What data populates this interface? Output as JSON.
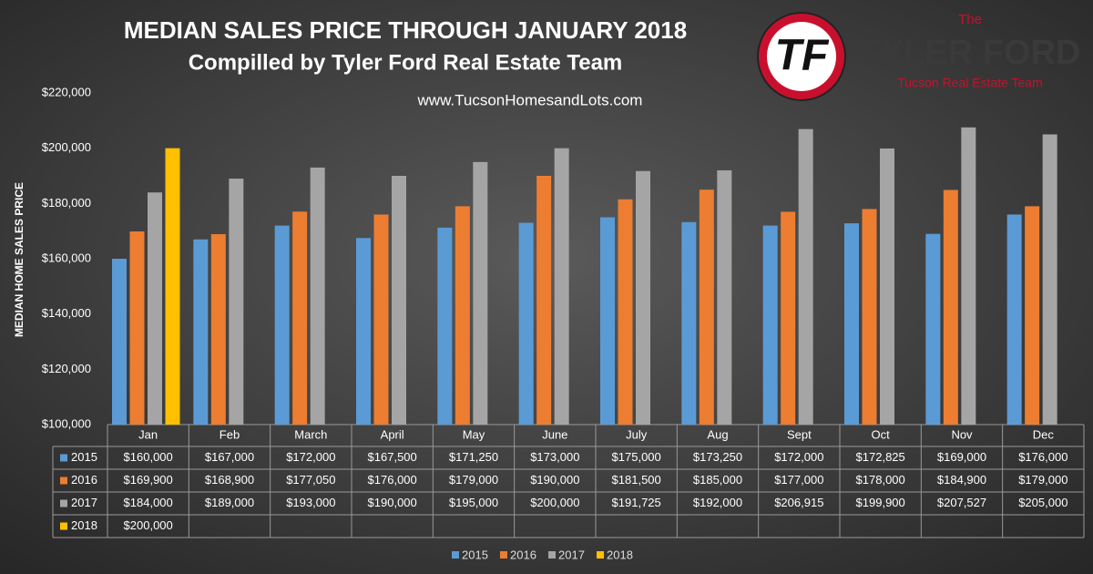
{
  "chart_data": {
    "type": "bar",
    "title": "MEDIAN SALES PRICE THROUGH JANUARY 2018",
    "subtitle": "Compilled by Tyler Ford Real Estate Team",
    "annotation": "www.TucsonHomesandLots.com",
    "ylabel": "MEDIAN HOME SALES PRICE",
    "categories": [
      "Jan",
      "Feb",
      "March",
      "April",
      "May",
      "June",
      "July",
      "Aug",
      "Sept",
      "Oct",
      "Nov",
      "Dec"
    ],
    "series": [
      {
        "name": "2015",
        "color": "#5b9bd5",
        "values": [
          160000,
          167000,
          172000,
          167500,
          171250,
          173000,
          175000,
          173250,
          172000,
          172825,
          169000,
          176000
        ],
        "value_labels": [
          "$160,000",
          "$167,000",
          "$172,000",
          "$167,500",
          "$171,250",
          "$173,000",
          "$175,000",
          "$173,250",
          "$172,000",
          "$172,825",
          "$169,000",
          "$176,000"
        ]
      },
      {
        "name": "2016",
        "color": "#ed7d31",
        "values": [
          169900,
          168900,
          177050,
          176000,
          179000,
          190000,
          181500,
          185000,
          177000,
          178000,
          184900,
          179000
        ],
        "value_labels": [
          "$169,900",
          "$168,900",
          "$177,050",
          "$176,000",
          "$179,000",
          "$190,000",
          "$181,500",
          "$185,000",
          "$177,000",
          "$178,000",
          "$184,900",
          "$179,000"
        ]
      },
      {
        "name": "2017",
        "color": "#a5a5a5",
        "values": [
          184000,
          189000,
          193000,
          190000,
          195000,
          200000,
          191725,
          192000,
          206915,
          199900,
          207527,
          205000
        ],
        "value_labels": [
          "$184,000",
          "$189,000",
          "$193,000",
          "$190,000",
          "$195,000",
          "$200,000",
          "$191,725",
          "$192,000",
          "$206,915",
          "$199,900",
          "$207,527",
          "$205,000"
        ]
      },
      {
        "name": "2018",
        "color": "#ffc000",
        "values": [
          200000,
          null,
          null,
          null,
          null,
          null,
          null,
          null,
          null,
          null,
          null,
          null
        ],
        "value_labels": [
          "$200,000",
          null,
          null,
          null,
          null,
          null,
          null,
          null,
          null,
          null,
          null,
          null
        ]
      }
    ],
    "ylim": [
      100000,
      220000
    ],
    "yticks": [
      {
        "value": 100000,
        "label": "$100,000"
      },
      {
        "value": 120000,
        "label": "$120,000"
      },
      {
        "value": 140000,
        "label": "$140,000"
      },
      {
        "value": 160000,
        "label": "$160,000"
      },
      {
        "value": 180000,
        "label": "$180,000"
      },
      {
        "value": 200000,
        "label": "$200,000"
      },
      {
        "value": 220000,
        "label": "$220,000"
      }
    ],
    "grid": false,
    "legend": "bottom"
  },
  "logo": {
    "mark": "TF",
    "top": "The",
    "name": "TYLER FORD",
    "tagline": "Tucson Real Estate Team"
  }
}
